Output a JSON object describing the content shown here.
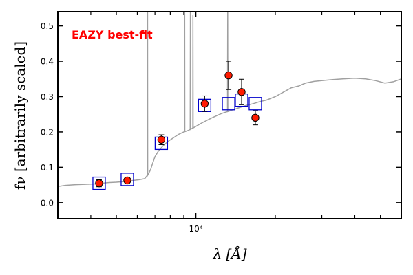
{
  "chart_data": {
    "type": "scatter",
    "title": "",
    "annotation": "EAZY best-fit",
    "annotation_color": "#ff0000",
    "xlabel": "λ [Å]",
    "ylabel": "fν [arbitrarily scaled]",
    "xscale": "log",
    "xlim": [
      3000,
      60000
    ],
    "ylim": [
      -0.045,
      0.54
    ],
    "yticks": [
      0.0,
      0.1,
      0.2,
      0.3,
      0.4,
      0.5
    ],
    "ytick_labels": [
      "0.0",
      "0.1",
      "0.2",
      "0.3",
      "0.4",
      "0.5"
    ],
    "xticks_major": [
      10000
    ],
    "xtick_labels": [
      "10⁴"
    ],
    "xticks_minor": [
      4000,
      5000,
      6000,
      7000,
      8000,
      9000,
      20000,
      30000,
      40000,
      50000
    ],
    "grid": false,
    "colors": {
      "model": "#a0a0a0",
      "observed_fill": "#ff1a00",
      "observed_edge": "#000000",
      "model_photometry": "#0000cc"
    },
    "series": [
      {
        "kind": "model_spectrum",
        "points": [
          [
            3000,
            0.046
          ],
          [
            3200,
            0.049
          ],
          [
            3500,
            0.051
          ],
          [
            3800,
            0.052
          ],
          [
            4100,
            0.053
          ],
          [
            4400,
            0.055
          ],
          [
            4700,
            0.057
          ],
          [
            5000,
            0.058
          ],
          [
            5400,
            0.06
          ],
          [
            5800,
            0.063
          ],
          [
            6100,
            0.065
          ],
          [
            6400,
            0.068
          ],
          [
            6600,
            0.08
          ],
          [
            6750,
            0.095
          ],
          [
            6850,
            0.11
          ],
          [
            7000,
            0.13
          ],
          [
            7200,
            0.145
          ],
          [
            7500,
            0.16
          ],
          [
            7800,
            0.172
          ],
          [
            8200,
            0.183
          ],
          [
            8600,
            0.193
          ],
          [
            9000,
            0.2
          ],
          [
            9400,
            0.205
          ],
          [
            9800,
            0.212
          ],
          [
            10500,
            0.225
          ],
          [
            11500,
            0.24
          ],
          [
            12500,
            0.252
          ],
          [
            13500,
            0.26
          ],
          [
            14500,
            0.268
          ],
          [
            15500,
            0.275
          ],
          [
            16500,
            0.28
          ],
          [
            17500,
            0.286
          ],
          [
            18500,
            0.29
          ],
          [
            20000,
            0.3
          ],
          [
            21500,
            0.313
          ],
          [
            23000,
            0.325
          ],
          [
            24500,
            0.33
          ],
          [
            26000,
            0.338
          ],
          [
            28000,
            0.343
          ],
          [
            30000,
            0.345
          ],
          [
            33000,
            0.348
          ],
          [
            36000,
            0.35
          ],
          [
            40000,
            0.352
          ],
          [
            44000,
            0.35
          ],
          [
            48000,
            0.345
          ],
          [
            52000,
            0.338
          ],
          [
            56000,
            0.342
          ],
          [
            60000,
            0.35
          ]
        ],
        "emission_lines": [
          {
            "x": 6563,
            "peak": 0.54
          },
          {
            "x": 9069,
            "peak": 0.54
          },
          {
            "x": 9532,
            "peak": 0.54
          },
          {
            "x": 9750,
            "peak": 0.53
          },
          {
            "x": 13200,
            "peak": 0.54
          }
        ]
      },
      {
        "kind": "model_photometry",
        "x": [
          4300,
          5500,
          7400,
          10800,
          13300,
          14900,
          16800
        ],
        "y": [
          0.055,
          0.066,
          0.168,
          0.275,
          0.28,
          0.29,
          0.28
        ]
      },
      {
        "kind": "observed_photometry",
        "x": [
          4300,
          5500,
          7400,
          10800,
          13300,
          14900,
          16800
        ],
        "y": [
          0.055,
          0.063,
          0.178,
          0.28,
          0.36,
          0.313,
          0.24
        ],
        "yerr": [
          0.01,
          0.006,
          0.014,
          0.022,
          0.04,
          0.036,
          0.02
        ]
      }
    ]
  }
}
